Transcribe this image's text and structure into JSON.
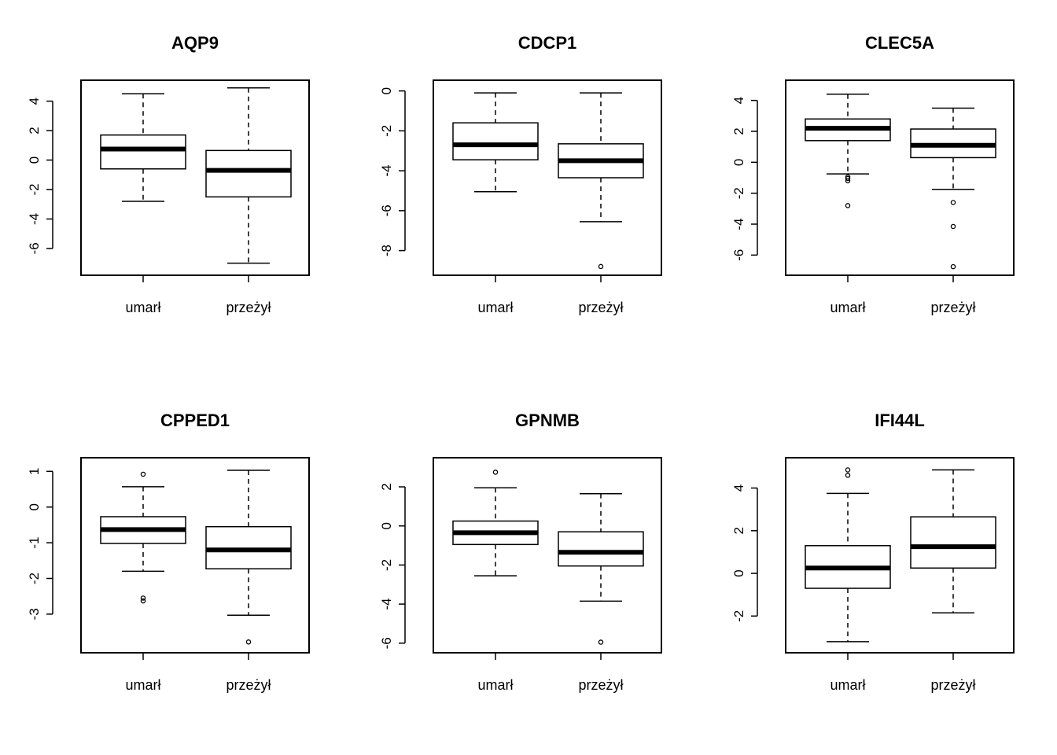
{
  "chart_data": [
    {
      "type": "box",
      "title": "AQP9",
      "categories": [
        "umarł",
        "przeżył"
      ],
      "ylim": [
        -7.5,
        5.1
      ],
      "yticks": [
        -6,
        -4,
        -2,
        0,
        2,
        4
      ],
      "boxes": [
        {
          "whisker_low": -2.8,
          "q1": -0.6,
          "median": 0.75,
          "q3": 1.7,
          "whisker_high": 4.5,
          "outliers": []
        },
        {
          "whisker_low": -7.0,
          "q1": -2.5,
          "median": -0.7,
          "q3": 0.65,
          "whisker_high": 4.9,
          "outliers": []
        }
      ]
    },
    {
      "type": "box",
      "title": "CDCP1",
      "categories": [
        "umarł",
        "przeżył"
      ],
      "ylim": [
        -9.0,
        0.3
      ],
      "yticks": [
        -8,
        -6,
        -4,
        -2,
        0
      ],
      "boxes": [
        {
          "whisker_low": -5.05,
          "q1": -3.45,
          "median": -2.7,
          "q3": -1.6,
          "whisker_high": -0.1,
          "outliers": []
        },
        {
          "whisker_low": -6.55,
          "q1": -4.35,
          "median": -3.5,
          "q3": -2.65,
          "whisker_high": -0.1,
          "outliers": [
            -8.8
          ]
        }
      ]
    },
    {
      "type": "box",
      "title": "CLEC5A",
      "categories": [
        "umarł",
        "przeżył"
      ],
      "ylim": [
        -7.0,
        5.0
      ],
      "yticks": [
        -6,
        -4,
        -2,
        0,
        2,
        4
      ],
      "boxes": [
        {
          "whisker_low": -0.75,
          "q1": 1.4,
          "median": 2.2,
          "q3": 2.8,
          "whisker_high": 4.4,
          "outliers": [
            -0.95,
            -1.05,
            -1.2,
            -2.8
          ]
        },
        {
          "whisker_low": -1.75,
          "q1": 0.3,
          "median": 1.1,
          "q3": 2.15,
          "whisker_high": 3.5,
          "outliers": [
            -2.6,
            -4.15,
            -6.75
          ]
        }
      ]
    },
    {
      "type": "box",
      "title": "CPPED1",
      "categories": [
        "umarł",
        "przeżył"
      ],
      "ylim": [
        -3.95,
        1.25
      ],
      "yticks": [
        -3,
        -2,
        -1,
        0,
        1
      ],
      "boxes": [
        {
          "whisker_low": -1.8,
          "q1": -1.02,
          "median": -0.63,
          "q3": -0.27,
          "whisker_high": 0.57,
          "outliers": [
            0.92,
            -2.55,
            -2.63
          ]
        },
        {
          "whisker_low": -3.03,
          "q1": -1.73,
          "median": -1.2,
          "q3": -0.55,
          "whisker_high": 1.03,
          "outliers": [
            -3.78
          ]
        }
      ]
    },
    {
      "type": "box",
      "title": "GPNMB",
      "categories": [
        "umarł",
        "przeżył"
      ],
      "ylim": [
        -6.25,
        3.25
      ],
      "yticks": [
        -6,
        -4,
        -2,
        0,
        2
      ],
      "boxes": [
        {
          "whisker_low": -2.55,
          "q1": -0.95,
          "median": -0.35,
          "q3": 0.25,
          "whisker_high": 1.95,
          "outliers": [
            2.75
          ]
        },
        {
          "whisker_low": -3.85,
          "q1": -2.05,
          "median": -1.35,
          "q3": -0.3,
          "whisker_high": 1.65,
          "outliers": [
            -5.95
          ]
        }
      ]
    },
    {
      "type": "box",
      "title": "IFI44L",
      "categories": [
        "umarł",
        "przeżył"
      ],
      "ylim": [
        -3.5,
        5.2
      ],
      "yticks": [
        -2,
        0,
        2,
        4
      ],
      "boxes": [
        {
          "whisker_low": -3.2,
          "q1": -0.7,
          "median": 0.25,
          "q3": 1.3,
          "whisker_high": 3.75,
          "outliers": [
            4.6,
            4.85
          ]
        },
        {
          "whisker_low": -1.85,
          "q1": 0.25,
          "median": 1.25,
          "q3": 2.65,
          "whisker_high": 4.85,
          "outliers": []
        }
      ]
    }
  ]
}
